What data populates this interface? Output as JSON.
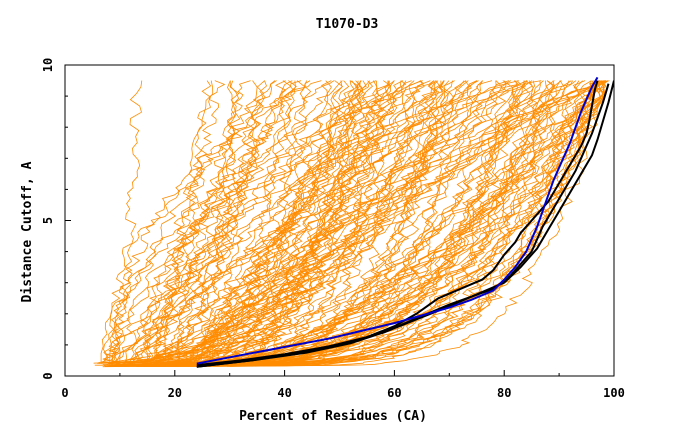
{
  "chart_data": {
    "type": "line",
    "title": "T1070-D3",
    "xlabel": "Percent of Residues (CA)",
    "ylabel": "Distance Cutoff, A",
    "xlim": [
      0,
      100
    ],
    "ylim": [
      0,
      10
    ],
    "x_ticks": [
      "0",
      "20",
      "40",
      "60",
      "80",
      "100"
    ],
    "y_ticks": [
      "0",
      "5",
      "10"
    ],
    "colors": {
      "background_curves": "#ff8c00",
      "highlight_blue": "#0000cc",
      "highlight_black": "#000000",
      "axes": "#000000"
    },
    "series": [
      {
        "color": "#0000cc",
        "x": [
          24,
          30,
          36,
          42,
          48,
          54,
          60,
          65,
          70,
          74,
          78,
          80,
          82,
          84,
          85,
          86,
          87,
          88,
          89,
          90,
          91,
          92,
          93,
          94,
          95,
          96,
          97
        ],
        "y": [
          0.4,
          0.6,
          0.8,
          1.0,
          1.2,
          1.45,
          1.7,
          1.95,
          2.2,
          2.45,
          2.75,
          3.1,
          3.5,
          4.0,
          4.4,
          4.8,
          5.3,
          5.8,
          6.3,
          6.7,
          7.1,
          7.5,
          8.0,
          8.5,
          8.9,
          9.3,
          9.6
        ]
      },
      {
        "color": "#000000",
        "x": [
          24,
          32,
          40,
          48,
          55,
          60,
          64,
          68,
          72,
          76,
          78,
          80,
          82,
          83,
          84,
          85,
          86,
          87,
          88,
          89,
          90,
          91,
          92,
          93,
          94,
          95,
          95.5,
          96,
          96.5,
          97
        ],
        "y": [
          0.35,
          0.5,
          0.7,
          0.95,
          1.25,
          1.6,
          2.0,
          2.5,
          2.8,
          3.1,
          3.4,
          3.9,
          4.3,
          4.6,
          4.8,
          5.0,
          5.2,
          5.4,
          5.6,
          5.9,
          6.2,
          6.5,
          6.8,
          7.1,
          7.4,
          7.8,
          8.2,
          8.7,
          9.2,
          9.5
        ]
      },
      {
        "color": "#000000",
        "x": [
          24,
          34,
          44,
          52,
          58,
          62,
          66,
          70,
          74,
          78,
          81,
          83,
          85,
          86,
          87,
          88,
          89,
          90,
          91,
          92,
          93,
          94,
          95,
          96,
          97,
          98,
          99
        ],
        "y": [
          0.3,
          0.5,
          0.8,
          1.1,
          1.4,
          1.7,
          2.0,
          2.3,
          2.55,
          2.8,
          3.2,
          3.6,
          4.0,
          4.4,
          4.8,
          5.1,
          5.4,
          5.7,
          6.0,
          6.3,
          6.6,
          7.0,
          7.4,
          7.8,
          8.3,
          8.8,
          9.4
        ]
      },
      {
        "color": "#000000",
        "x": [
          24,
          34,
          44,
          52,
          58,
          63,
          68,
          72,
          76,
          80,
          83,
          86,
          88,
          90,
          92,
          94,
          96,
          97,
          98,
          99,
          100
        ],
        "y": [
          0.3,
          0.5,
          0.75,
          1.05,
          1.4,
          1.75,
          2.1,
          2.4,
          2.7,
          3.0,
          3.5,
          4.1,
          4.7,
          5.3,
          5.9,
          6.5,
          7.1,
          7.6,
          8.2,
          8.8,
          9.5
        ]
      }
    ],
    "background_series_count": 150
  }
}
